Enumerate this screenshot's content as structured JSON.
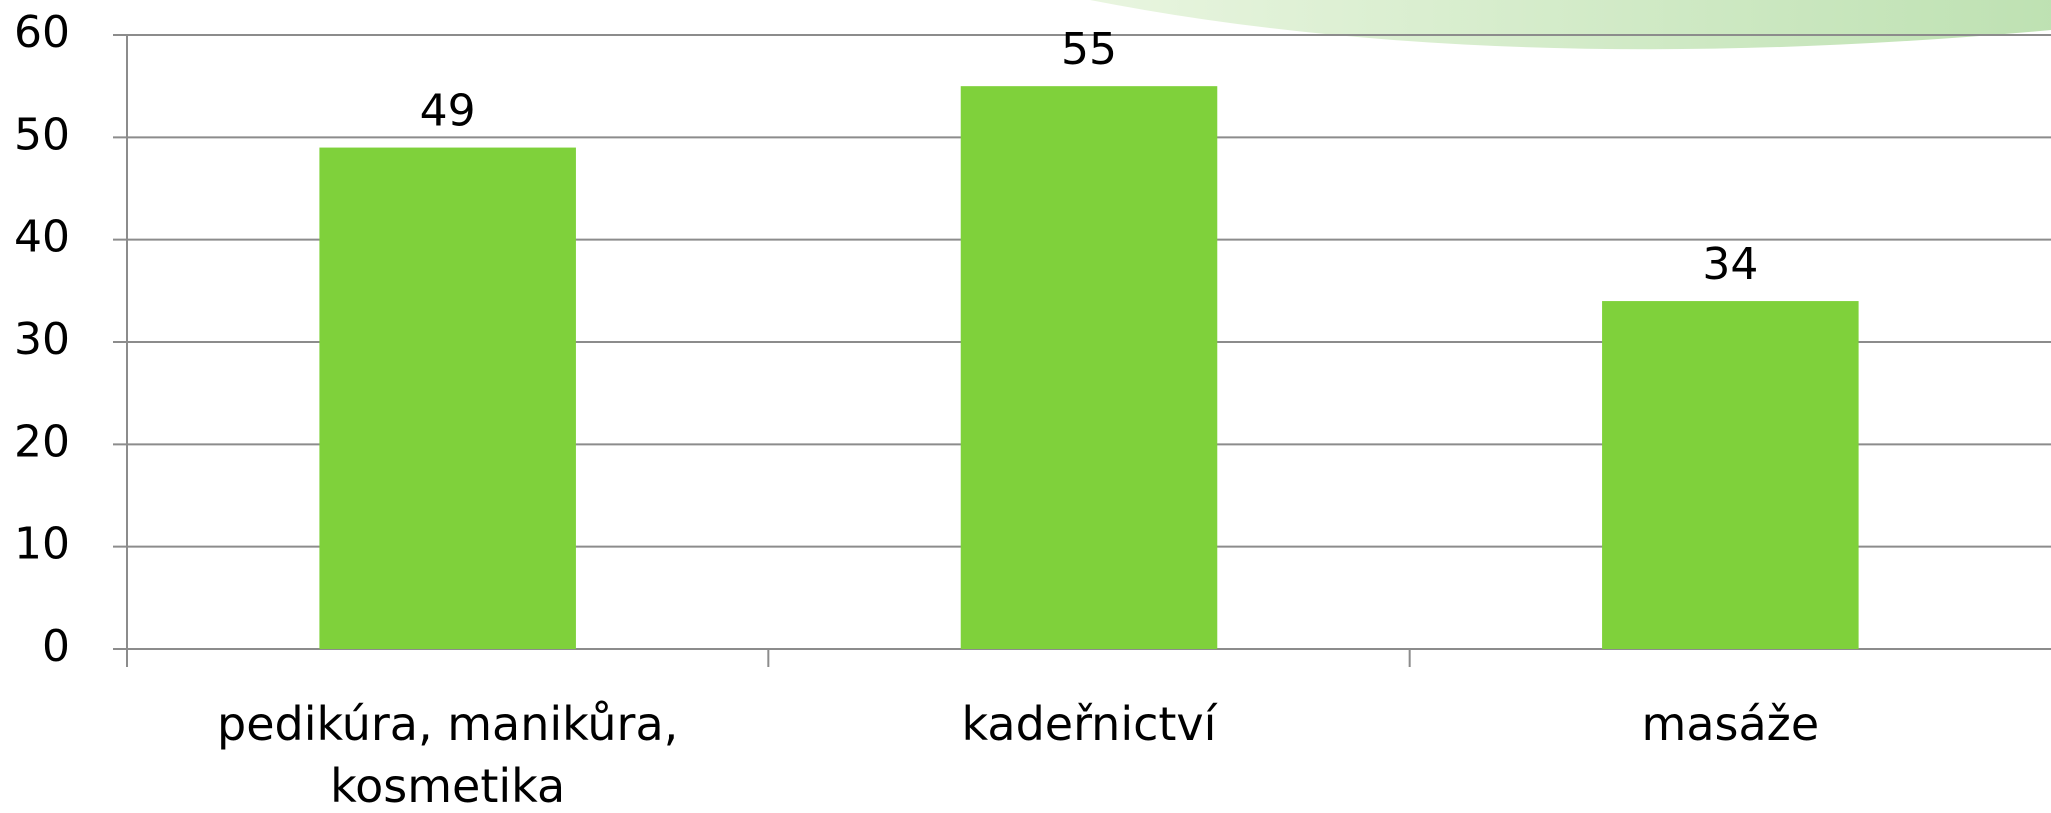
{
  "chart_data": {
    "type": "bar",
    "categories": [
      "pedikúra, manikůra, kosmetika",
      "kadeřnictví",
      "masáže"
    ],
    "values": [
      49,
      55,
      34
    ],
    "color": "#7fd13b",
    "ylim": [
      0,
      60
    ],
    "yticks": [
      0,
      10,
      20,
      30,
      40,
      50,
      60
    ],
    "grid": true
  }
}
